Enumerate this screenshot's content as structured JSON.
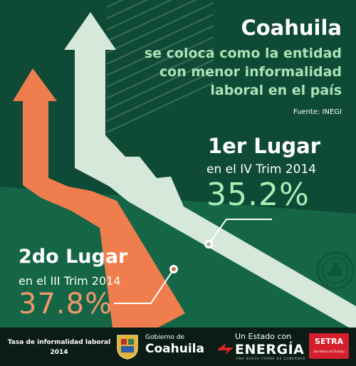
{
  "title": "Coahuila",
  "subtitle_lines": [
    "se coloca como la entidad",
    "con menor informalidad",
    "laboral en el país"
  ],
  "source": "Fuente: INEGI",
  "first": {
    "heading": "1er Lugar",
    "period": "en el IV Trim 2014",
    "value": "35.2%"
  },
  "second": {
    "heading": "2do Lugar",
    "period": "en el III Trim 2014",
    "value": "37.8%"
  },
  "footer": {
    "caption_lines": [
      "Tasa de informalidad laboral",
      "2014"
    ],
    "gobierno_small": "Gobierno de",
    "gobierno_big": "Coahuila",
    "estado_small": "Un Estado con",
    "estado_big": "ENERGÍA",
    "estado_tagline": "UNA NUEVA FORMA DE GOBERNAR",
    "setra_name": "SETRA",
    "setra_sub": "Secretaría del Trabajo"
  },
  "colors": {
    "background": "#0e4a35",
    "light_arrow": "#d5e8da",
    "orange_arrow": "#ef7d4e",
    "first_value": "#a6f0b6",
    "second_value": "#f0976a",
    "subtitle": "#a9e3b6",
    "footer_bg": "#0a1c14",
    "setra_red": "#d4202c"
  },
  "icons": [
    "sheep-emblem-icon",
    "gobierno-shield-icon",
    "energia-logo-icon"
  ]
}
